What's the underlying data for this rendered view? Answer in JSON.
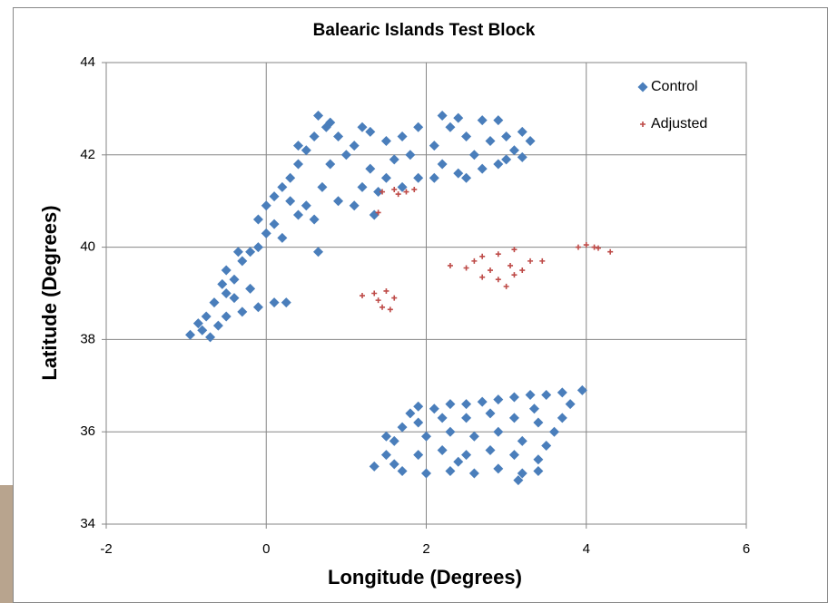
{
  "chart_data": {
    "type": "scatter",
    "title": "Balearic Islands Test Block",
    "x_label": "Longitude (Degrees)",
    "y_label": "Latitude (Degrees)",
    "xlim": [
      -2,
      6
    ],
    "xticks": [
      -2,
      0,
      2,
      4,
      6
    ],
    "ylim": [
      34,
      44
    ],
    "yticks": [
      34,
      36,
      38,
      40,
      42,
      44
    ],
    "grid": true,
    "legend": "top-right",
    "series": [
      {
        "name": "Control",
        "color": "#4a7ebb",
        "marker": "diamond",
        "x": [
          -0.95,
          -0.8,
          -0.7,
          -0.6,
          -0.5,
          -0.75,
          -0.65,
          -0.5,
          -0.4,
          -0.5,
          -0.3,
          -0.2,
          -0.3,
          -0.1,
          0.1,
          0.25,
          -0.4,
          -0.55,
          -0.35,
          -0.1,
          0.0,
          0.1,
          -0.1,
          0.0,
          0.1,
          0.2,
          0.3,
          0.4,
          0.5,
          0.6,
          0.3,
          0.4,
          0.5,
          0.6,
          0.75,
          0.65,
          0.9,
          1.0,
          0.8,
          0.7,
          0.9,
          1.1,
          1.2,
          1.3,
          1.1,
          1.3,
          1.5,
          1.6,
          1.5,
          1.4,
          1.7,
          1.9,
          1.8,
          1.7,
          1.9,
          2.1,
          2.2,
          2.1,
          2.3,
          2.2,
          2.4,
          2.5,
          2.6,
          2.4,
          2.7,
          2.8,
          2.7,
          2.9,
          3.0,
          3.1,
          3.0,
          3.2,
          3.3,
          3.2,
          2.9,
          2.5,
          0.65,
          1.35,
          0.2,
          -0.2,
          -0.85,
          0.4,
          0.8,
          1.2,
          1.35,
          1.5,
          1.6,
          1.7,
          1.8,
          1.9,
          2.1,
          2.3,
          2.5,
          2.7,
          2.9,
          3.1,
          3.3,
          3.5,
          3.7,
          3.95,
          3.8,
          3.7,
          3.6,
          3.5,
          3.4,
          3.4,
          3.2,
          3.15,
          2.9,
          2.6,
          2.3,
          2.0,
          1.7,
          1.6,
          1.9,
          2.2,
          2.5,
          2.8,
          3.1,
          3.2,
          2.9,
          2.6,
          2.3,
          2.0,
          1.9,
          2.2,
          2.5,
          2.8,
          3.1,
          3.4,
          3.35,
          2.4,
          1.5
        ],
        "y": [
          38.1,
          38.2,
          38.05,
          38.3,
          38.5,
          38.5,
          38.8,
          39.0,
          39.3,
          39.5,
          39.7,
          39.9,
          38.6,
          38.7,
          38.8,
          38.8,
          38.9,
          39.2,
          39.9,
          40.0,
          40.3,
          40.5,
          40.6,
          40.9,
          41.1,
          41.3,
          41.0,
          40.7,
          40.9,
          40.6,
          41.5,
          41.8,
          42.1,
          42.4,
          42.6,
          42.85,
          42.4,
          42.0,
          41.8,
          41.3,
          41.0,
          40.9,
          41.3,
          41.7,
          42.2,
          42.5,
          42.3,
          41.9,
          41.5,
          41.2,
          41.3,
          41.5,
          42.0,
          42.4,
          42.6,
          42.2,
          41.8,
          41.5,
          42.6,
          42.85,
          42.8,
          42.4,
          42.0,
          41.6,
          41.7,
          42.3,
          42.75,
          42.75,
          42.4,
          42.1,
          41.9,
          41.95,
          42.3,
          42.5,
          41.8,
          41.5,
          39.9,
          40.7,
          40.2,
          39.1,
          38.35,
          42.2,
          42.7,
          42.6,
          35.25,
          35.5,
          35.8,
          36.1,
          36.4,
          36.55,
          36.5,
          36.6,
          36.6,
          36.65,
          36.7,
          36.75,
          36.8,
          36.8,
          36.85,
          36.9,
          36.6,
          36.3,
          36.0,
          35.7,
          35.4,
          35.15,
          35.1,
          34.95,
          35.2,
          35.1,
          35.15,
          35.1,
          35.15,
          35.3,
          35.5,
          35.6,
          35.5,
          35.6,
          35.5,
          35.8,
          36.0,
          35.9,
          36.0,
          35.9,
          36.2,
          36.3,
          36.3,
          36.4,
          36.3,
          36.2,
          36.5,
          35.35,
          35.9
        ]
      },
      {
        "name": "Adjusted",
        "color": "#be4b48",
        "marker": "plus",
        "x": [
          1.45,
          1.6,
          1.75,
          1.85,
          1.65,
          1.4,
          1.2,
          1.35,
          1.5,
          1.6,
          1.4,
          1.45,
          1.55,
          2.3,
          2.5,
          2.6,
          2.7,
          2.9,
          3.1,
          3.05,
          2.8,
          2.7,
          2.9,
          3.1,
          3.3,
          3.45,
          3.0,
          3.2,
          3.9,
          4.0,
          4.15,
          4.3,
          4.1
        ],
        "y": [
          41.2,
          41.25,
          41.2,
          41.25,
          41.15,
          40.75,
          38.95,
          39.0,
          39.05,
          38.9,
          38.85,
          38.7,
          38.65,
          39.6,
          39.55,
          39.7,
          39.8,
          39.85,
          39.95,
          39.6,
          39.5,
          39.35,
          39.3,
          39.4,
          39.7,
          39.7,
          39.15,
          39.5,
          40.0,
          40.05,
          39.98,
          39.9,
          40.0
        ]
      }
    ]
  }
}
